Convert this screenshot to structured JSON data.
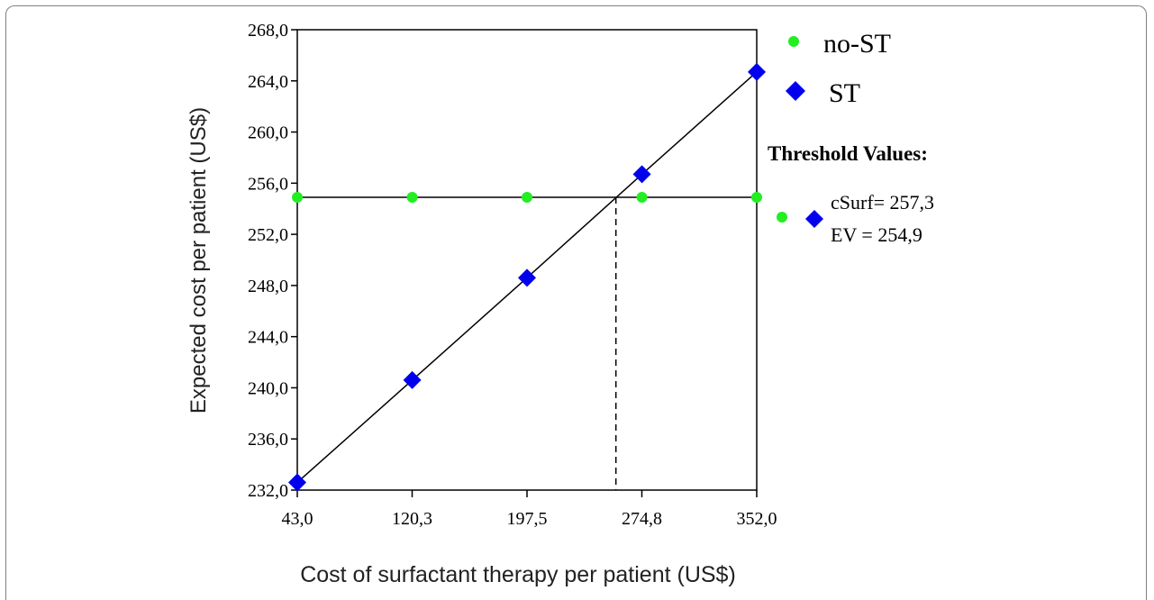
{
  "chart_data": {
    "type": "scatter",
    "x_label": "Cost of surfactant therapy per patient (US$)",
    "y_label": "Expected cost per patient (US$)",
    "x_ticks": [
      "43,0",
      "120,3",
      "197,5",
      "274,8",
      "352,0"
    ],
    "y_ticks": [
      "232,0",
      "236,0",
      "240,0",
      "244,0",
      "248,0",
      "252,0",
      "256,0",
      "260,0",
      "264,0",
      "268,0"
    ],
    "xlim": [
      43.0,
      352.0
    ],
    "ylim": [
      232.0,
      268.0
    ],
    "grid": false,
    "legend_position": "right",
    "series": [
      {
        "name": "no-ST",
        "marker": "circle",
        "color": "#22ee22",
        "x": [
          43.0,
          120.3,
          197.5,
          274.8,
          352.0
        ],
        "y": [
          254.9,
          254.9,
          254.9,
          254.9,
          254.9
        ]
      },
      {
        "name": "ST",
        "marker": "diamond",
        "color": "#0000ee",
        "x": [
          43.0,
          120.3,
          197.5,
          274.8,
          352.0
        ],
        "y": [
          232.6,
          240.6,
          248.6,
          256.7,
          264.7
        ]
      }
    ],
    "threshold": {
      "title": "Threshold Values:",
      "line1": "cSurf= 257,3",
      "line2": "EV = 254,9",
      "x": 257.3,
      "y": 254.9
    }
  }
}
